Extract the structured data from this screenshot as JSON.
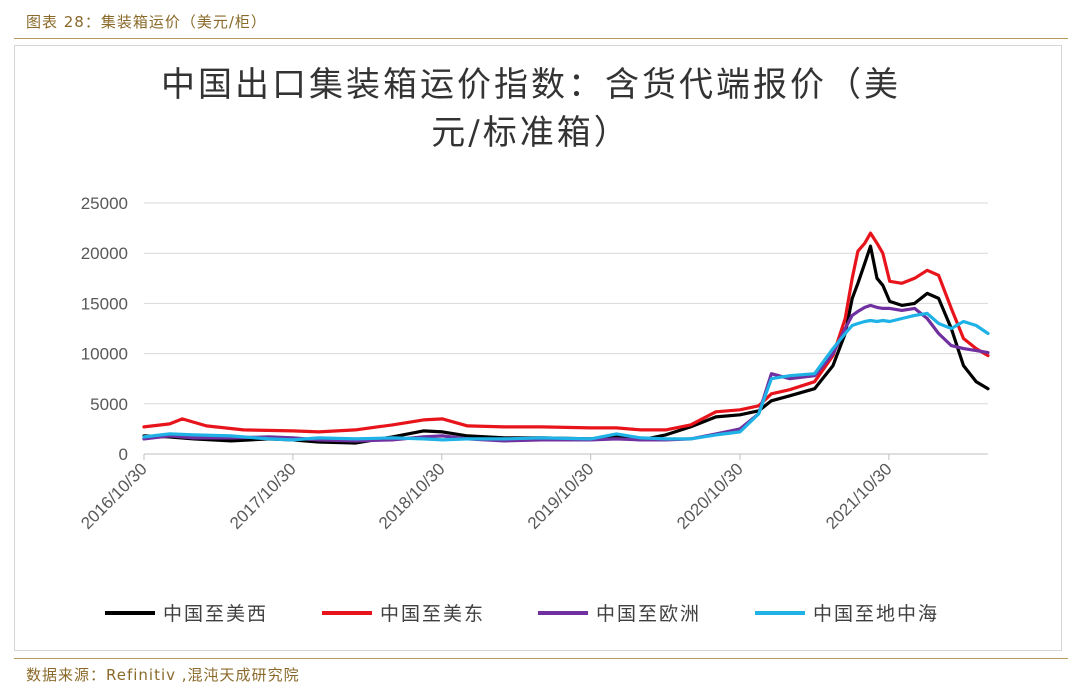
{
  "figure_label": "图表 28：集装箱运价（美元/柜）",
  "source_note": "数据来源：Refinitiv ,混沌天成研究院",
  "colors": {
    "frame": "#b89a5c",
    "label": "#8a6a2a"
  },
  "chart_data": {
    "type": "line",
    "title_line1": "中国出口集装箱运价指数：含货代端报价（美",
    "title_line2": "元/标准箱）",
    "xlabel": "",
    "ylabel": "",
    "ylim": [
      0,
      25000
    ],
    "yticks": [
      "0",
      "5000",
      "10000",
      "15000",
      "20000",
      "25000"
    ],
    "xlim": [
      "2016/10/30",
      "2022/6/30"
    ],
    "xticks": [
      "2016/10/30",
      "2017/10/30",
      "2018/10/30",
      "2019/10/30",
      "2020/10/30",
      "2021/10/30"
    ],
    "grid": true,
    "legend_position": "bottom",
    "series": [
      {
        "name": "中国至美西",
        "color": "#000000",
        "points": [
          [
            "2016/10/30",
            1800
          ],
          [
            "2016/12/30",
            1700
          ],
          [
            "2017/3/1",
            1500
          ],
          [
            "2017/6/1",
            1300
          ],
          [
            "2017/9/1",
            1500
          ],
          [
            "2017/10/30",
            1400
          ],
          [
            "2018/1/1",
            1200
          ],
          [
            "2018/4/1",
            1100
          ],
          [
            "2018/7/1",
            1700
          ],
          [
            "2018/9/15",
            2300
          ],
          [
            "2018/11/1",
            2200
          ],
          [
            "2019/1/1",
            1800
          ],
          [
            "2019/4/1",
            1600
          ],
          [
            "2019/7/1",
            1600
          ],
          [
            "2019/10/30",
            1500
          ],
          [
            "2020/1/1",
            1700
          ],
          [
            "2020/3/1",
            1400
          ],
          [
            "2020/5/1",
            1900
          ],
          [
            "2020/7/1",
            2700
          ],
          [
            "2020/9/1",
            3700
          ],
          [
            "2020/10/30",
            3900
          ],
          [
            "2020/12/15",
            4300
          ],
          [
            "2021/1/15",
            5300
          ],
          [
            "2021/3/1",
            5800
          ],
          [
            "2021/5/1",
            6500
          ],
          [
            "2021/6/15",
            8800
          ],
          [
            "2021/7/15",
            12000
          ],
          [
            "2021/8/1",
            15500
          ],
          [
            "2021/8/15",
            17000
          ],
          [
            "2021/9/1",
            19000
          ],
          [
            "2021/9/15",
            20700
          ],
          [
            "2021/10/1",
            17500
          ],
          [
            "2021/10/15",
            16800
          ],
          [
            "2021/11/1",
            15200
          ],
          [
            "2021/12/1",
            14800
          ],
          [
            "2022/1/1",
            15000
          ],
          [
            "2022/2/1",
            16000
          ],
          [
            "2022/3/1",
            15500
          ],
          [
            "2022/4/1",
            12500
          ],
          [
            "2022/5/1",
            8800
          ],
          [
            "2022/6/1",
            7200
          ],
          [
            "2022/6/30",
            6500
          ]
        ]
      },
      {
        "name": "中国至美东",
        "color": "#e8141b",
        "points": [
          [
            "2016/10/30",
            2700
          ],
          [
            "2017/1/1",
            3000
          ],
          [
            "2017/2/1",
            3500
          ],
          [
            "2017/4/1",
            2800
          ],
          [
            "2017/7/1",
            2400
          ],
          [
            "2017/10/30",
            2300
          ],
          [
            "2018/1/1",
            2200
          ],
          [
            "2018/4/1",
            2400
          ],
          [
            "2018/7/1",
            2900
          ],
          [
            "2018/9/15",
            3400
          ],
          [
            "2018/11/1",
            3500
          ],
          [
            "2019/1/1",
            2800
          ],
          [
            "2019/4/1",
            2700
          ],
          [
            "2019/7/1",
            2700
          ],
          [
            "2019/10/30",
            2600
          ],
          [
            "2020/1/1",
            2600
          ],
          [
            "2020/3/1",
            2400
          ],
          [
            "2020/5/1",
            2400
          ],
          [
            "2020/7/1",
            2900
          ],
          [
            "2020/9/1",
            4200
          ],
          [
            "2020/10/30",
            4400
          ],
          [
            "2020/12/15",
            4800
          ],
          [
            "2021/1/15",
            6000
          ],
          [
            "2021/3/1",
            6400
          ],
          [
            "2021/5/1",
            7200
          ],
          [
            "2021/6/15",
            9800
          ],
          [
            "2021/7/15",
            13500
          ],
          [
            "2021/8/1",
            17500
          ],
          [
            "2021/8/15",
            20200
          ],
          [
            "2021/9/1",
            21000
          ],
          [
            "2021/9/15",
            22000
          ],
          [
            "2021/10/1",
            21000
          ],
          [
            "2021/10/15",
            20000
          ],
          [
            "2021/11/1",
            17200
          ],
          [
            "2021/12/1",
            17000
          ],
          [
            "2022/1/1",
            17500
          ],
          [
            "2022/2/1",
            18300
          ],
          [
            "2022/3/1",
            17800
          ],
          [
            "2022/4/1",
            14500
          ],
          [
            "2022/5/1",
            11500
          ],
          [
            "2022/6/1",
            10500
          ],
          [
            "2022/6/30",
            9800
          ]
        ]
      },
      {
        "name": "中国至欧洲",
        "color": "#7030a0",
        "points": [
          [
            "2016/10/30",
            1500
          ],
          [
            "2017/1/1",
            1800
          ],
          [
            "2017/3/1",
            1600
          ],
          [
            "2017/6/1",
            1600
          ],
          [
            "2017/9/1",
            1700
          ],
          [
            "2017/10/30",
            1600
          ],
          [
            "2018/1/1",
            1400
          ],
          [
            "2018/4/1",
            1300
          ],
          [
            "2018/7/1",
            1400
          ],
          [
            "2018/9/15",
            1700
          ],
          [
            "2018/11/1",
            1800
          ],
          [
            "2019/1/1",
            1500
          ],
          [
            "2019/4/1",
            1300
          ],
          [
            "2019/7/1",
            1400
          ],
          [
            "2019/10/30",
            1400
          ],
          [
            "2020/1/1",
            1500
          ],
          [
            "2020/3/1",
            1400
          ],
          [
            "2020/5/1",
            1400
          ],
          [
            "2020/7/1",
            1500
          ],
          [
            "2020/9/1",
            2000
          ],
          [
            "2020/10/30",
            2500
          ],
          [
            "2020/12/15",
            4000
          ],
          [
            "2021/1/15",
            8000
          ],
          [
            "2021/3/1",
            7500
          ],
          [
            "2021/5/1",
            7800
          ],
          [
            "2021/6/15",
            10000
          ],
          [
            "2021/7/15",
            12500
          ],
          [
            "2021/8/1",
            13800
          ],
          [
            "2021/8/15",
            14200
          ],
          [
            "2021/9/1",
            14600
          ],
          [
            "2021/9/15",
            14800
          ],
          [
            "2021/10/1",
            14600
          ],
          [
            "2021/10/15",
            14500
          ],
          [
            "2021/11/1",
            14500
          ],
          [
            "2021/12/1",
            14300
          ],
          [
            "2022/1/1",
            14500
          ],
          [
            "2022/2/1",
            13500
          ],
          [
            "2022/3/1",
            12000
          ],
          [
            "2022/4/1",
            10800
          ],
          [
            "2022/5/1",
            10500
          ],
          [
            "2022/6/1",
            10300
          ],
          [
            "2022/6/30",
            10100
          ]
        ]
      },
      {
        "name": "中国至地中海",
        "color": "#1fb2e6",
        "points": [
          [
            "2016/10/30",
            1700
          ],
          [
            "2017/1/1",
            2000
          ],
          [
            "2017/3/1",
            1900
          ],
          [
            "2017/6/1",
            1800
          ],
          [
            "2017/9/1",
            1500
          ],
          [
            "2017/10/30",
            1400
          ],
          [
            "2018/1/1",
            1600
          ],
          [
            "2018/4/1",
            1500
          ],
          [
            "2018/7/1",
            1600
          ],
          [
            "2018/9/15",
            1500
          ],
          [
            "2018/11/1",
            1400
          ],
          [
            "2019/1/1",
            1500
          ],
          [
            "2019/4/1",
            1500
          ],
          [
            "2019/7/1",
            1600
          ],
          [
            "2019/10/30",
            1500
          ],
          [
            "2020/1/1",
            2000
          ],
          [
            "2020/3/1",
            1600
          ],
          [
            "2020/5/1",
            1500
          ],
          [
            "2020/7/1",
            1500
          ],
          [
            "2020/9/1",
            1900
          ],
          [
            "2020/10/30",
            2200
          ],
          [
            "2020/12/15",
            4000
          ],
          [
            "2021/1/15",
            7500
          ],
          [
            "2021/3/1",
            7800
          ],
          [
            "2021/5/1",
            8000
          ],
          [
            "2021/6/15",
            10500
          ],
          [
            "2021/7/15",
            12000
          ],
          [
            "2021/8/1",
            12800
          ],
          [
            "2021/8/15",
            13000
          ],
          [
            "2021/9/1",
            13200
          ],
          [
            "2021/9/15",
            13300
          ],
          [
            "2021/10/1",
            13200
          ],
          [
            "2021/10/15",
            13300
          ],
          [
            "2021/11/1",
            13200
          ],
          [
            "2021/12/1",
            13500
          ],
          [
            "2022/1/1",
            13800
          ],
          [
            "2022/2/1",
            14000
          ],
          [
            "2022/3/1",
            13000
          ],
          [
            "2022/4/1",
            12500
          ],
          [
            "2022/5/1",
            13200
          ],
          [
            "2022/6/1",
            12800
          ],
          [
            "2022/6/30",
            12000
          ]
        ]
      }
    ]
  }
}
